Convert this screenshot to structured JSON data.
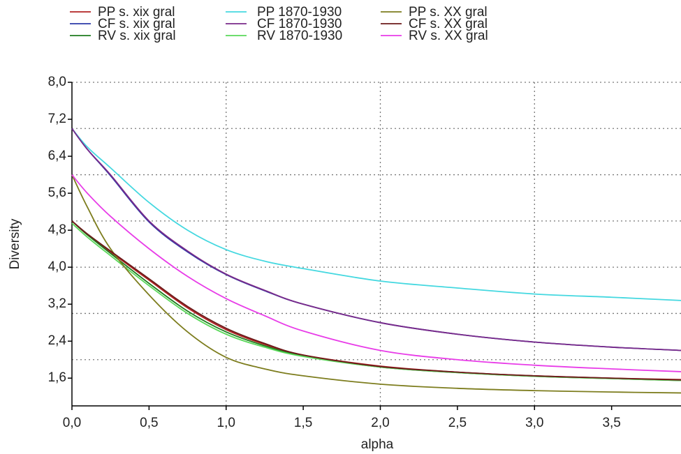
{
  "chart_data": {
    "type": "line",
    "x_label": "alpha",
    "y_label": "Diversity",
    "x": [
      0,
      0.1,
      0.25,
      0.5,
      0.75,
      1,
      1.25,
      1.5,
      2,
      2.5,
      3,
      3.5,
      3.95
    ],
    "xlim": [
      0,
      3.95
    ],
    "ylim": [
      1,
      8
    ],
    "xticks": [
      {
        "value": 0,
        "label": "0,0"
      },
      {
        "value": 0.5,
        "label": "0,5"
      },
      {
        "value": 1,
        "label": "1,0"
      },
      {
        "value": 1.5,
        "label": "1,5"
      },
      {
        "value": 2,
        "label": "2,0"
      },
      {
        "value": 2.5,
        "label": "2,5"
      },
      {
        "value": 3,
        "label": "3,0"
      },
      {
        "value": 3.5,
        "label": "3,5"
      }
    ],
    "yticks": [
      {
        "value": 1.6,
        "label": "1,6"
      },
      {
        "value": 2.4,
        "label": "2,4"
      },
      {
        "value": 3.2,
        "label": "3,2"
      },
      {
        "value": 4,
        "label": "4,0"
      },
      {
        "value": 4.8,
        "label": "4,8"
      },
      {
        "value": 5.6,
        "label": "5,6"
      },
      {
        "value": 6.4,
        "label": "6,4"
      },
      {
        "value": 7.2,
        "label": "7,2"
      },
      {
        "value": 8,
        "label": "8,0"
      }
    ],
    "x_grid": [
      1,
      2,
      3
    ],
    "y_grid": [
      2,
      3,
      4,
      5,
      6,
      7,
      8
    ],
    "grid": true,
    "legend": "top",
    "series": [
      {
        "name": "PP s. xix gral",
        "color": "#b22222",
        "values": [
          5.0,
          4.7,
          4.33,
          3.72,
          3.12,
          2.65,
          2.33,
          2.1,
          1.86,
          1.73,
          1.65,
          1.6,
          1.57
        ]
      },
      {
        "name": "CF s. xix gral",
        "color": "#2b3aa8",
        "values": [
          7.0,
          6.55,
          5.98,
          4.98,
          4.33,
          3.84,
          3.49,
          3.2,
          2.8,
          2.55,
          2.38,
          2.27,
          2.2
        ]
      },
      {
        "name": "RV s. xix gral",
        "color": "#1e7b1e",
        "values": [
          5.0,
          4.7,
          4.3,
          3.65,
          3.05,
          2.6,
          2.3,
          2.08,
          1.84,
          1.72,
          1.64,
          1.59,
          1.55
        ]
      },
      {
        "name": "PP 1870-1930",
        "color": "#44d8e0",
        "values": [
          7.0,
          6.6,
          6.15,
          5.4,
          4.8,
          4.38,
          4.13,
          3.97,
          3.7,
          3.55,
          3.42,
          3.35,
          3.28
        ]
      },
      {
        "name": "CF 1870-1930",
        "color": "#7a2a8a",
        "values": [
          7.0,
          6.55,
          6.0,
          5.0,
          4.35,
          3.85,
          3.5,
          3.2,
          2.8,
          2.55,
          2.38,
          2.27,
          2.2
        ]
      },
      {
        "name": "RV 1870-1930",
        "color": "#5ad85a",
        "values": [
          4.95,
          4.65,
          4.25,
          3.6,
          3.0,
          2.55,
          2.27,
          2.07,
          1.84,
          1.72,
          1.64,
          1.59,
          1.55
        ]
      },
      {
        "name": "PP s. XX gral",
        "color": "#7d7d1e",
        "values": [
          6.0,
          5.3,
          4.4,
          3.4,
          2.6,
          2.05,
          1.8,
          1.65,
          1.47,
          1.38,
          1.33,
          1.3,
          1.28
        ]
      },
      {
        "name": "CF s. XX gral",
        "color": "#6b1a1a",
        "values": [
          5.0,
          4.72,
          4.35,
          3.75,
          3.15,
          2.68,
          2.35,
          2.1,
          1.85,
          1.73,
          1.65,
          1.6,
          1.56
        ]
      },
      {
        "name": "RV s. XX gral",
        "color": "#e83ce8",
        "values": [
          6.0,
          5.6,
          5.1,
          4.4,
          3.8,
          3.32,
          2.95,
          2.62,
          2.2,
          2.0,
          1.88,
          1.8,
          1.74
        ]
      }
    ]
  }
}
